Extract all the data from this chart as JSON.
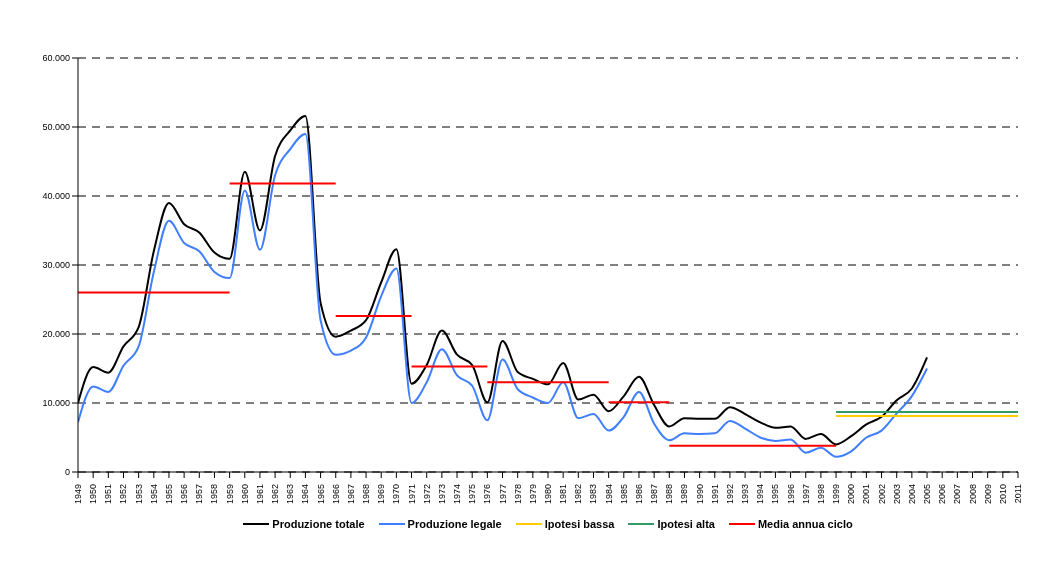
{
  "chart_data": {
    "type": "line",
    "x": [
      1949,
      1950,
      1951,
      1952,
      1953,
      1954,
      1955,
      1956,
      1957,
      1958,
      1959,
      1960,
      1961,
      1962,
      1963,
      1964,
      1965,
      1966,
      1967,
      1968,
      1969,
      1970,
      1971,
      1972,
      1973,
      1974,
      1975,
      1976,
      1977,
      1978,
      1979,
      1980,
      1981,
      1982,
      1983,
      1984,
      1985,
      1986,
      1987,
      1988,
      1989,
      1990,
      1991,
      1992,
      1993,
      1994,
      1995,
      1996,
      1997,
      1998,
      1999,
      2000,
      2001,
      2002,
      2003,
      2004,
      2005
    ],
    "series": [
      {
        "name": "Produzione totale",
        "color": "#000000",
        "values": [
          10000,
          15200,
          14400,
          18200,
          21000,
          32000,
          39000,
          35900,
          34700,
          31800,
          30900,
          43500,
          35000,
          45800,
          49500,
          51600,
          24500,
          19600,
          20500,
          22000,
          27500,
          32300,
          12800,
          15500,
          20500,
          17000,
          15500,
          10100,
          19000,
          14500,
          13500,
          12700,
          15800,
          10500,
          11200,
          8800,
          11000,
          13800,
          9700,
          6600,
          7800,
          7700,
          7700,
          9400,
          8400,
          7200,
          6400,
          6600,
          4800,
          5500,
          4000,
          5200,
          6900,
          8000,
          10400,
          12100,
          16600
        ]
      },
      {
        "name": "Produzione legale",
        "color": "#3f7fff",
        "values": [
          7200,
          12400,
          11600,
          15400,
          18200,
          29000,
          36400,
          33200,
          32000,
          29000,
          28100,
          40800,
          32200,
          43000,
          46800,
          49000,
          22000,
          17000,
          17600,
          19500,
          25500,
          29500,
          10000,
          13000,
          17800,
          14000,
          12500,
          7500,
          16300,
          12000,
          10800,
          10000,
          13000,
          7800,
          8400,
          6000,
          8000,
          11600,
          7000,
          4600,
          5600,
          5500,
          5600,
          7400,
          6300,
          5000,
          4500,
          4700,
          2800,
          3500,
          2200,
          3000,
          5000,
          6000,
          8500,
          11000,
          15000
        ]
      },
      {
        "name": "Ipotesi bassa",
        "color": "#ffcc00",
        "x": [
          1999,
          2011
        ],
        "values": [
          8100,
          8100
        ]
      },
      {
        "name": "Ipotesi alta",
        "color": "#339966",
        "x": [
          1999,
          2011
        ],
        "values": [
          8700,
          8700
        ]
      },
      {
        "name": "Media annua ciclo",
        "color": "#ff0000",
        "x": [
          1949,
          1959
        ],
        "values": [
          26000,
          26000
        ]
      },
      {
        "color": "#ff0000",
        "x": [
          1959,
          1966
        ],
        "values": [
          41800,
          41800
        ]
      },
      {
        "color": "#ff0000",
        "x": [
          1966,
          1971
        ],
        "values": [
          22600,
          22600
        ]
      },
      {
        "color": "#ff0000",
        "x": [
          1971,
          1976
        ],
        "values": [
          15300,
          15300
        ]
      },
      {
        "color": "#ff0000",
        "x": [
          1976,
          1984
        ],
        "values": [
          13000,
          13000
        ]
      },
      {
        "color": "#ff0000",
        "x": [
          1984,
          1988
        ],
        "values": [
          10100,
          10100
        ]
      },
      {
        "color": "#ff0000",
        "x": [
          1988,
          1999
        ],
        "values": [
          3800,
          3800
        ]
      }
    ],
    "xlim": [
      1949,
      2011
    ],
    "xticks": [
      1949,
      1950,
      1951,
      1952,
      1953,
      1954,
      1955,
      1956,
      1957,
      1958,
      1959,
      1960,
      1961,
      1962,
      1963,
      1964,
      1965,
      1966,
      1967,
      1968,
      1969,
      1970,
      1971,
      1972,
      1973,
      1974,
      1975,
      1976,
      1977,
      1978,
      1979,
      1980,
      1981,
      1982,
      1983,
      1984,
      1985,
      1986,
      1987,
      1988,
      1989,
      1990,
      1991,
      1992,
      1993,
      1994,
      1995,
      1996,
      1997,
      1998,
      1999,
      2000,
      2001,
      2002,
      2003,
      2004,
      2005,
      2006,
      2007,
      2008,
      2009,
      2010,
      2011
    ],
    "ylim": [
      0,
      60000
    ],
    "yticks": [
      0,
      {
        "value": 10000,
        "label": "10.000"
      },
      {
        "value": 20000,
        "label": "20.000"
      },
      {
        "value": 30000,
        "label": "30.000"
      },
      {
        "value": 40000,
        "label": "40.000"
      },
      {
        "value": 50000,
        "label": "50.000"
      },
      {
        "value": 60000,
        "label": "60.000"
      }
    ],
    "grid": "y",
    "legend": "bottom",
    "marker": "none",
    "line_style": "solid"
  }
}
